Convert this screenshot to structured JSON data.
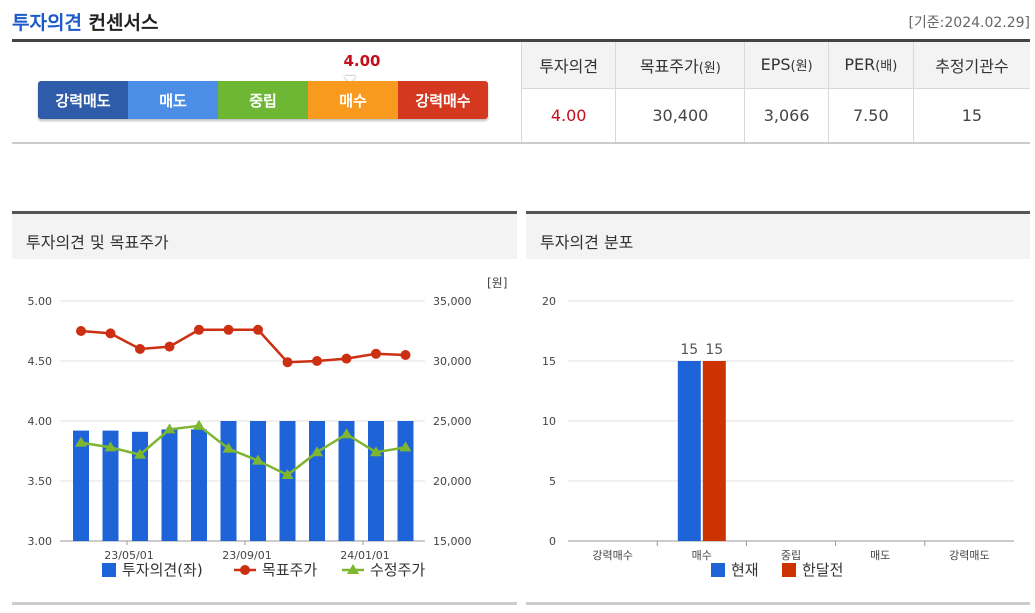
{
  "header": {
    "title_strong": "투자의견",
    "title_rest": "컨센서스",
    "as_of": "[기준:2024.02.29]"
  },
  "rating_scale": {
    "segments": [
      {
        "label": "강력매도",
        "color": "#2e5ca8"
      },
      {
        "label": "매도",
        "color": "#4c8ee6"
      },
      {
        "label": "중립",
        "color": "#6eb735"
      },
      {
        "label": "매수",
        "color": "#f89a1e"
      },
      {
        "label": "강력매수",
        "color": "#d4391f"
      }
    ],
    "current_value": "4.00"
  },
  "summary": {
    "headers": [
      "투자의견",
      "목표주가",
      "EPS",
      "PER",
      "추정기관수"
    ],
    "header_units": [
      "",
      "(원)",
      "(원)",
      "(배)",
      ""
    ],
    "values": [
      "4.00",
      "30,400",
      "3,066",
      "7.50",
      "15"
    ]
  },
  "panel_left": {
    "title": "투자의견 및 목표주가",
    "unit": "[원]"
  },
  "panel_right": {
    "title": "투자의견 분포"
  },
  "chart_data": [
    {
      "type": "bar",
      "title": "투자의견 및 목표주가",
      "x_ticks": [
        "23/05/01",
        "23/09/01",
        "24/01/01"
      ],
      "y_left": {
        "ticks": [
          "5.00",
          "4.50",
          "4.00",
          "3.50",
          "3.00"
        ],
        "ylim": [
          3.0,
          5.0
        ]
      },
      "y_right": {
        "ticks": [
          "35,000",
          "30,000",
          "25,000",
          "20,000",
          "15,000"
        ],
        "ylim": [
          15000,
          35000
        ],
        "unit": "[원]"
      },
      "x": [
        "2023-03",
        "2023-04",
        "2023-05",
        "2023-06",
        "2023-07",
        "2023-08",
        "2023-09",
        "2023-10",
        "2023-11",
        "2023-12",
        "2024-01",
        "2024-02"
      ],
      "series": [
        {
          "name": "투자의견(좌)",
          "kind": "bar",
          "axis": "left",
          "color": "#1f63d8",
          "values": [
            3.92,
            3.92,
            3.91,
            3.93,
            3.93,
            4.0,
            4.0,
            4.0,
            4.0,
            4.0,
            4.0,
            4.0
          ]
        },
        {
          "name": "목표주가",
          "kind": "line",
          "axis": "right",
          "color": "#cc2f11",
          "marker": "circle",
          "values": [
            32500,
            32300,
            31000,
            31200,
            32600,
            32600,
            32600,
            29900,
            30000,
            30200,
            30600,
            30500
          ]
        },
        {
          "name": "수정주가",
          "kind": "line",
          "axis": "right",
          "color": "#7fb631",
          "marker": "triangle",
          "values": [
            23200,
            22800,
            22200,
            24300,
            24600,
            22700,
            21700,
            20500,
            22400,
            23900,
            22400,
            22800
          ]
        }
      ],
      "legend": "bottom"
    },
    {
      "type": "bar",
      "title": "투자의견 분포",
      "categories": [
        "강력매수",
        "매수",
        "중립",
        "매도",
        "강력매도"
      ],
      "y_ticks": [
        "20",
        "15",
        "10",
        "5",
        "0"
      ],
      "ylim": [
        0,
        20
      ],
      "series": [
        {
          "name": "현재",
          "color": "#1f63d8",
          "values": [
            0,
            15,
            0,
            0,
            0
          ],
          "data_labels": [
            "",
            "15",
            "",
            "",
            ""
          ]
        },
        {
          "name": "한달전",
          "color": "#cc3300",
          "values": [
            0,
            15,
            0,
            0,
            0
          ],
          "data_labels": [
            "",
            "15",
            "",
            "",
            ""
          ]
        }
      ],
      "legend": "bottom"
    }
  ]
}
